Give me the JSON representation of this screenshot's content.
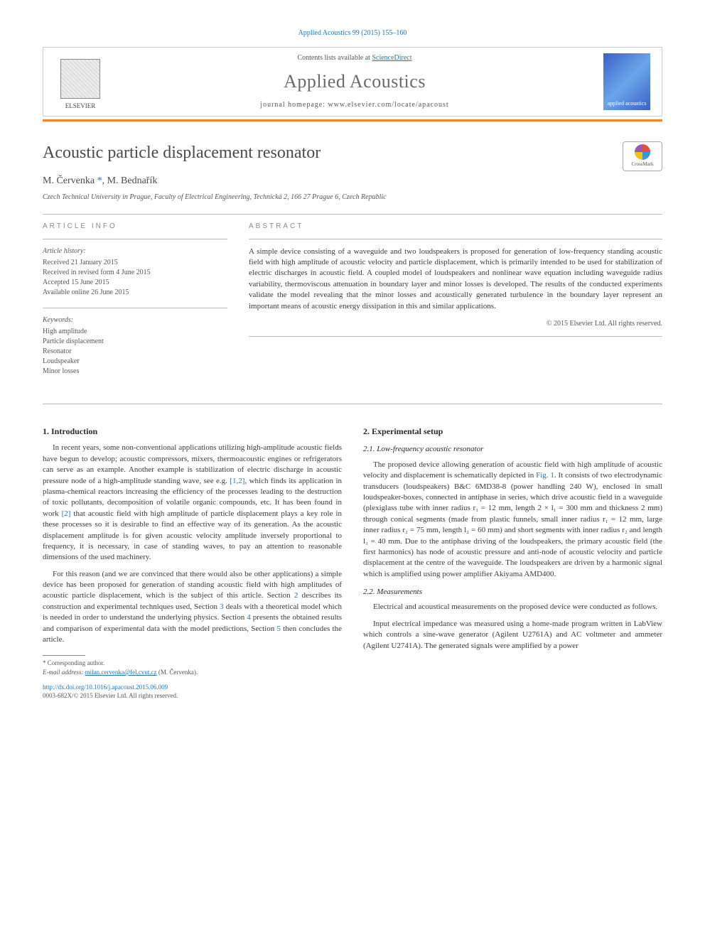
{
  "top_ref": "Applied Acoustics 99 (2015) 155–160",
  "header": {
    "contents_prefix": "Contents lists available at ",
    "contents_link": "ScienceDirect",
    "journal_name": "Applied Acoustics",
    "homepage_prefix": "journal homepage: ",
    "homepage_url": "www.elsevier.com/locate/apacoust",
    "publisher_label": "ELSEVIER",
    "cover_label": "applied acoustics"
  },
  "crossmark_label": "CrossMark",
  "article": {
    "title": "Acoustic particle displacement resonator",
    "authors_html": "M. Červenka *, M. Bednařík",
    "author1": "M. Červenka",
    "corr_mark": "*",
    "author2": "M. Bednařík",
    "affiliation": "Czech Technical University in Prague, Faculty of Electrical Engineering, Technická 2, 166 27 Prague 6, Czech Republic"
  },
  "info": {
    "label": "ARTICLE INFO",
    "history_hdr": "Article history:",
    "history": [
      "Received 21 January 2015",
      "Received in revised form 4 June 2015",
      "Accepted 15 June 2015",
      "Available online 26 June 2015"
    ],
    "keywords_hdr": "Keywords:",
    "keywords": [
      "High amplitude",
      "Particle displacement",
      "Resonator",
      "Loudspeaker",
      "Minor losses"
    ]
  },
  "abstract": {
    "label": "ABSTRACT",
    "text": "A simple device consisting of a waveguide and two loudspeakers is proposed for generation of low-frequency standing acoustic field with high amplitude of acoustic velocity and particle displacement, which is primarily intended to be used for stabilization of electric discharges in acoustic field. A coupled model of loudspeakers and nonlinear wave equation including waveguide radius variability, thermoviscous attenuation in boundary layer and minor losses is developed. The results of the conducted experiments validate the model revealing that the minor losses and acoustically generated turbulence in the boundary layer represent an important means of acoustic energy dissipation in this and similar applications.",
    "copyright": "© 2015 Elsevier Ltd. All rights reserved."
  },
  "body": {
    "s1_head": "1. Introduction",
    "s1_p1_a": "In recent years, some non-conventional applications utilizing high-amplitude acoustic fields have begun to develop; acoustic compressors, mixers, thermoacoustic engines or refrigerators can serve as an example. Another example is stabilization of electric discharge in acoustic pressure node of a high-amplitude standing wave, see e.g. ",
    "cite12": "[1,2]",
    "s1_p1_b": ", which finds its application in plasma-chemical reactors increasing the efficiency of the processes leading to the destruction of toxic pollutants, decomposition of volatile organic compounds, etc. It has been found in work ",
    "cite2": "[2]",
    "s1_p1_c": " that acoustic field with high amplitude of particle displacement plays a key role in these processes so it is desirable to find an effective way of its generation. As the acoustic displacement amplitude is for given acoustic velocity amplitude inversely proportional to frequency, it is necessary, in case of standing waves, to pay an attention to reasonable dimensions of the used machinery.",
    "s1_p2_a": "For this reason (and we are convinced that there would also be other applications) a simple device has been proposed for generation of standing acoustic field with high amplitudes of acoustic particle displacement, which is the subject of this article. Section ",
    "ref2": "2",
    "s1_p2_b": " describes its construction and experimental techniques used, Section ",
    "ref3": "3",
    "s1_p2_c": " deals with a theoretical model which is needed in order to understand the underlying physics. Section ",
    "ref4": "4",
    "s1_p2_d": " presents the obtained results and comparison of experimental data with the model predictions, Section ",
    "ref5": "5",
    "s1_p2_e": " then concludes the article.",
    "s2_head": "2. Experimental setup",
    "s21_head": "2.1. Low-frequency acoustic resonator",
    "s21_p1_a": "The proposed device allowing generation of acoustic field with high amplitude of acoustic velocity and displacement is schematically depicted in ",
    "figref1": "Fig. 1",
    "s21_p1_b": ". It consists of two electrodynamic transducers (loudspeakers) B&C 6MD38-8 (power handling 240 W), enclosed in small loudspeaker-boxes, connected in antiphase in series, which drive acoustic field in a waveguide (plexiglass tube with inner radius r₁ = 12 mm, length 2 × l₁ = 300 mm and thickness 2 mm) through conical segments (made from plastic funnels, small inner radius r₁ = 12 mm, large inner radius r₂ = 75 mm, length l₂ = 60 mm) and short segments with inner radius r₂ and length l₃ = 40 mm. Due to the antiphase driving of the loudspeakers, the primary acoustic field (the first harmonics) has node of acoustic pressure and anti-node of acoustic velocity and particle displacement at the centre of the waveguide. The loudspeakers are driven by a harmonic signal which is amplified using power amplifier Akiyama AMD400.",
    "s22_head": "2.2. Measurements",
    "s22_p1": "Electrical and acoustical measurements on the proposed device were conducted as follows.",
    "s22_p2": "Input electrical impedance was measured using a home-made program written in LabView which controls a sine-wave generator (Agilent U2761A) and AC voltmeter and ammeter (Agilent U2741A). The generated signals were amplified by a power"
  },
  "footnote": {
    "corr": "* Corresponding author.",
    "email_label": "E-mail address: ",
    "email": "milan.cervenka@fel.cvut.cz",
    "email_suffix": " (M. Červenka)."
  },
  "doi": {
    "url": "http://dx.doi.org/10.1016/j.apacoust.2015.06.009",
    "issn_line": "0003-682X/© 2015 Elsevier Ltd. All rights reserved."
  },
  "colors": {
    "link": "#2176b5",
    "rule": "#f58220",
    "text": "#3a3a3a",
    "muted": "#555555"
  }
}
